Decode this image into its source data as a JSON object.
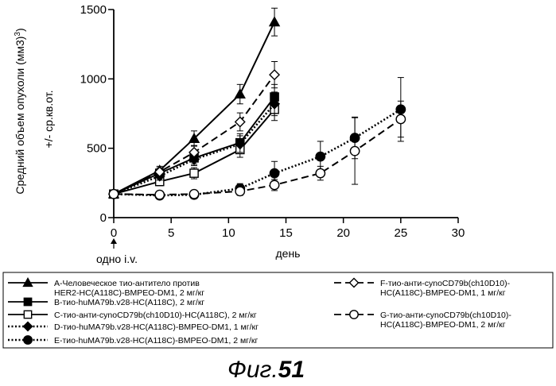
{
  "chart_data": {
    "type": "line",
    "title": "",
    "xlabel": "день",
    "ylabel": "Средний объем опухоли  (мм3)",
    "ylabel_sup": "3",
    "ylabel2": "+/- ср.кв.от.",
    "xlim": [
      0,
      30
    ],
    "ylim": [
      0,
      1500
    ],
    "x_ticks": [
      0,
      5,
      10,
      15,
      20,
      25,
      30
    ],
    "y_ticks": [
      0,
      500,
      1000,
      1500
    ],
    "annotation": "одно i.v.",
    "grid": false,
    "legend_position": "bottom",
    "series": [
      {
        "key": "A",
        "name": "A-Человеческое тио-антитело против HER2-HC(A118C)-BMPEO-DM1, 2 мг/кг",
        "legend_lines": [
          "A-Человеческое тио-антитело против",
          "HER2-HC(A118C)-BMPEO-DM1, 2 мг/кг"
        ],
        "marker": "triangle",
        "fill": "black",
        "style": "solid",
        "x": [
          0,
          4,
          7,
          11,
          14
        ],
        "y": [
          170,
          340,
          570,
          890,
          1410
        ],
        "err": [
          15,
          30,
          55,
          70,
          100
        ]
      },
      {
        "key": "B",
        "name": "B-тио-huMA79b.v28-HC(A118C), 2 мг/кг",
        "legend_lines": [
          "B-тио-huMA79b.v28-HC(A118C), 2 мг/кг"
        ],
        "marker": "square",
        "fill": "black",
        "style": "solid",
        "x": [
          0,
          4,
          7,
          11,
          14
        ],
        "y": [
          170,
          320,
          430,
          540,
          870
        ],
        "err": [
          15,
          30,
          45,
          65,
          90
        ]
      },
      {
        "key": "C",
        "name": "C-тио-анти-cynoCD79b(ch10D10)-HC(A118C), 2 мг/кг",
        "legend_lines": [
          "C-тио-анти-cynoCD79b(ch10D10)-HC(A118C), 2 мг/кг"
        ],
        "marker": "square",
        "fill": "white",
        "style": "solid",
        "x": [
          0,
          4,
          7,
          11,
          14
        ],
        "y": [
          170,
          260,
          320,
          490,
          780
        ],
        "err": [
          15,
          30,
          40,
          55,
          80
        ]
      },
      {
        "key": "D",
        "name": "D-тио-huMA79b.v28-HC(A118C)-BMPEO-DM1, 1 мг/кг",
        "legend_lines": [
          "D-тио-huMA79b.v28-HC(A118C)-BMPEO-DM1, 1 мг/кг"
        ],
        "marker": "diamond",
        "fill": "black",
        "style": "dotted",
        "x": [
          0,
          4,
          7,
          11,
          14
        ],
        "y": [
          170,
          300,
          420,
          530,
          820
        ],
        "err": [
          15,
          30,
          45,
          60,
          85
        ]
      },
      {
        "key": "E",
        "name": "E-тио-huMA79b.v28-HC(A118C)-BMPEO-DM1, 2 мг/кг",
        "legend_lines": [
          "E-тио-huMA79b.v28-HC(A118C)-BMPEO-DM1, 2 мг/кг"
        ],
        "marker": "circle",
        "fill": "black",
        "style": "dotted",
        "x": [
          0,
          4,
          7,
          11,
          14,
          18,
          21,
          25
        ],
        "y": [
          170,
          160,
          165,
          210,
          320,
          440,
          575,
          780
        ],
        "err": [
          15,
          20,
          25,
          35,
          85,
          110,
          150,
          230
        ]
      },
      {
        "key": "F",
        "name": "F-тио-анти-cynoCD79b(ch10D10)-HC(A118C)-BMPEO-DM1, 1 мг/кг",
        "legend_lines": [
          "F-тио-анти-cynoCD79b(ch10D10)-",
          "HC(A118C)-BMPEO-DM1, 1 мг/кг"
        ],
        "marker": "diamond",
        "fill": "white",
        "style": "dashed",
        "x": [
          0,
          4,
          7,
          11,
          14
        ],
        "y": [
          170,
          330,
          470,
          690,
          1030
        ],
        "err": [
          15,
          30,
          50,
          65,
          95
        ]
      },
      {
        "key": "G",
        "name": "G-тио-анти-cynoCD79b(ch10D10)-HC(A118C)-BMPEO-DM1, 2 мг/кг",
        "legend_lines": [
          "G-тио-анти-cynoCD79b(ch10D10)-",
          "HC(A118C)-BMPEO-DM1, 2 мг/кг"
        ],
        "marker": "circle",
        "fill": "white",
        "style": "dashed",
        "x": [
          0,
          4,
          7,
          11,
          14,
          18,
          21,
          25
        ],
        "y": [
          170,
          165,
          170,
          190,
          235,
          320,
          480,
          710
        ],
        "err": [
          15,
          20,
          20,
          30,
          40,
          50,
          240,
          130
        ]
      }
    ]
  },
  "figure_caption": {
    "prefix": "Фиг.",
    "number": "51"
  }
}
